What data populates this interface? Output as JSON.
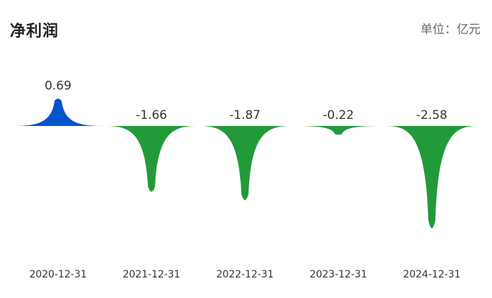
{
  "header": {
    "title": "净利润",
    "unit_text": "单位：亿元"
  },
  "colors": {
    "positive": "#0055cc",
    "negative": "#229a3a"
  },
  "chart_data": {
    "type": "area",
    "title": "净利润",
    "unit": "单位：亿元",
    "categories": [
      "2020-12-31",
      "2021-12-31",
      "2022-12-31",
      "2023-12-31",
      "2024-12-31"
    ],
    "values": [
      0.69,
      -1.66,
      -1.87,
      -0.22,
      -2.58
    ],
    "value_labels": [
      "0.69",
      "-1.66",
      "-1.87",
      "-0.22",
      "-2.58"
    ],
    "ylim": [
      -2.58,
      0.69
    ],
    "grid": false,
    "legend": "none"
  }
}
